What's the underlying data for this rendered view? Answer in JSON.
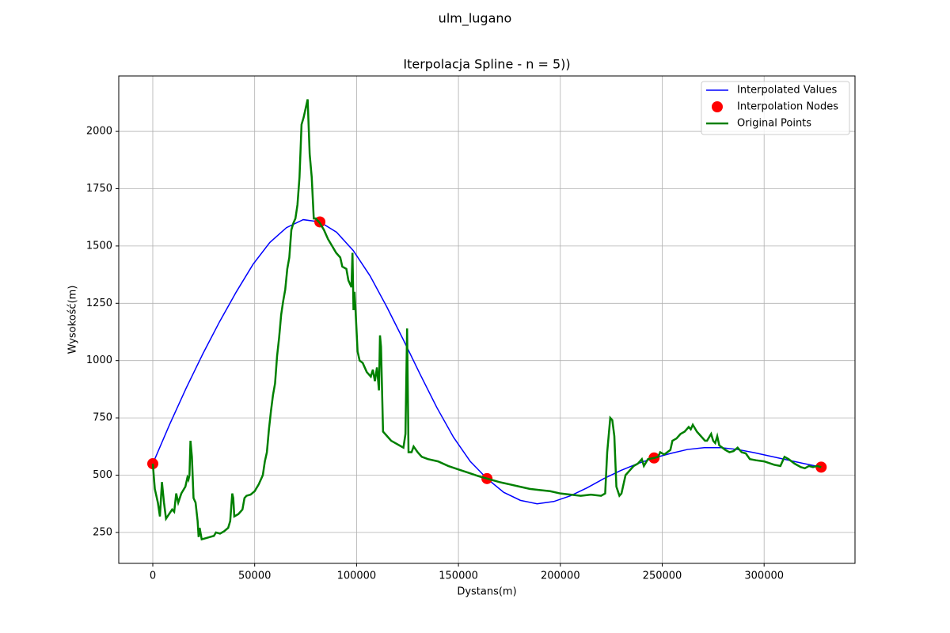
{
  "chart_data": {
    "type": "line",
    "suptitle": "ulm_lugano",
    "title": "Iterpolacja Spline - n = 5))",
    "xlabel": "Dystans(m)",
    "ylabel": "Wysokość(m)",
    "xlim": [
      -16700,
      344600
    ],
    "xticks": [
      0,
      50000,
      100000,
      150000,
      200000,
      250000,
      300000
    ],
    "ylim": [
      115,
      2242
    ],
    "yticks": [
      250,
      500,
      750,
      1000,
      1250,
      1500,
      1750,
      2000
    ],
    "grid": true,
    "legend": "upper right",
    "series": [
      {
        "name": "Interpolated Values",
        "type": "line",
        "color": "#0000ff",
        "width": 1.5,
        "x": [
          0,
          8200,
          16400,
          24600,
          32800,
          41000,
          49200,
          57400,
          65600,
          73800,
          82000,
          90200,
          98400,
          106600,
          114800,
          123000,
          131200,
          139400,
          147600,
          155800,
          164000,
          172200,
          180400,
          188600,
          196800,
          205000,
          213200,
          221400,
          229600,
          237800,
          246000,
          254200,
          262400,
          270600,
          278800,
          287000,
          295200,
          303400,
          311600,
          319800,
          328000
        ],
        "values": [
          550,
          720,
          880,
          1030,
          1170,
          1300,
          1420,
          1515,
          1580,
          1615,
          1605,
          1560,
          1480,
          1370,
          1235,
          1090,
          940,
          795,
          665,
          560,
          485,
          425,
          390,
          375,
          385,
          410,
          445,
          485,
          520,
          550,
          575,
          595,
          612,
          620,
          620,
          612,
          598,
          582,
          566,
          550,
          535
        ]
      },
      {
        "name": "Interpolation Nodes",
        "type": "scatter",
        "color": "#ff0000",
        "x": [
          0,
          82000,
          164000,
          246000,
          328000
        ],
        "values": [
          550,
          1605,
          485,
          575,
          535
        ]
      },
      {
        "name": "Original Points",
        "type": "line",
        "color": "#008000",
        "width": 2.5,
        "x": [
          0,
          1000,
          2500,
          3500,
          4500,
          5500,
          6500,
          8000,
          9500,
          10500,
          11500,
          12500,
          14000,
          16000,
          17000,
          17500,
          18000,
          18500,
          19200,
          20000,
          21000,
          22000,
          22500,
          23000,
          24000,
          26000,
          28000,
          30000,
          31000,
          33000,
          35000,
          37000,
          38000,
          39000,
          39500,
          40000,
          42000,
          44000,
          45000,
          46000,
          48000,
          50000,
          52000,
          54000,
          55000,
          56000,
          57000,
          58000,
          59000,
          60000,
          61000,
          62000,
          63000,
          64000,
          65000,
          66000,
          67000,
          68000,
          69000,
          70000,
          71000,
          72000,
          73000,
          74000,
          75000,
          76000,
          77000,
          78000,
          79000,
          80000,
          82000,
          84000,
          86000,
          88000,
          90000,
          92000,
          93000,
          95000,
          96000,
          97500,
          98000,
          98500,
          99000,
          99500,
          100500,
          101500,
          103000,
          105000,
          107000,
          108000,
          109000,
          110000,
          111000,
          111500,
          112000,
          113000,
          115000,
          117000,
          119000,
          121000,
          123000,
          124000,
          124800,
          125500,
          127000,
          128000,
          130000,
          132000,
          135000,
          140000,
          145000,
          150000,
          155000,
          160000,
          164000,
          170000,
          175000,
          180000,
          185000,
          190000,
          195000,
          200000,
          205000,
          210000,
          215000,
          220000,
          222000,
          223000,
          224500,
          225500,
          226500,
          227500,
          229000,
          230000,
          232000,
          234000,
          236000,
          238000,
          240000,
          241000,
          243000,
          246000,
          248000,
          249000,
          251000,
          254000,
          255000,
          257000,
          259000,
          261000,
          263000,
          264000,
          265000,
          267000,
          269000,
          271000,
          272000,
          274000,
          275000,
          276000,
          277000,
          278000,
          281000,
          283000,
          285000,
          287000,
          289000,
          291000,
          293000,
          296000,
          300000,
          305000,
          308000,
          310000,
          312000,
          315000,
          318000,
          320000,
          322000,
          324000,
          326000,
          328000
        ],
        "values": [
          550,
          440,
          380,
          320,
          470,
          380,
          310,
          330,
          350,
          340,
          420,
          380,
          420,
          450,
          490,
          480,
          500,
          650,
          580,
          400,
          380,
          300,
          230,
          270,
          220,
          225,
          230,
          235,
          250,
          245,
          255,
          270,
          300,
          420,
          400,
          320,
          330,
          350,
          400,
          410,
          415,
          430,
          460,
          500,
          560,
          600,
          700,
          780,
          850,
          900,
          1020,
          1100,
          1200,
          1260,
          1310,
          1400,
          1450,
          1570,
          1600,
          1620,
          1680,
          1800,
          2030,
          2060,
          2100,
          2140,
          1900,
          1800,
          1620,
          1620,
          1600,
          1570,
          1530,
          1500,
          1470,
          1450,
          1410,
          1400,
          1350,
          1320,
          1470,
          1220,
          1300,
          1220,
          1040,
          1000,
          990,
          950,
          930,
          960,
          910,
          970,
          870,
          1110,
          1060,
          690,
          670,
          650,
          640,
          630,
          620,
          680,
          1140,
          600,
          600,
          625,
          600,
          580,
          570,
          560,
          540,
          525,
          510,
          495,
          485,
          470,
          460,
          450,
          440,
          435,
          430,
          420,
          415,
          410,
          415,
          410,
          420,
          600,
          750,
          740,
          670,
          450,
          410,
          420,
          500,
          520,
          540,
          550,
          570,
          540,
          570,
          575,
          580,
          600,
          590,
          610,
          650,
          660,
          680,
          690,
          710,
          700,
          720,
          690,
          670,
          650,
          650,
          680,
          650,
          640,
          670,
          630,
          610,
          600,
          605,
          620,
          600,
          595,
          570,
          565,
          560,
          545,
          540,
          580,
          570,
          550,
          535,
          530,
          540,
          535,
          540,
          535
        ]
      }
    ]
  }
}
